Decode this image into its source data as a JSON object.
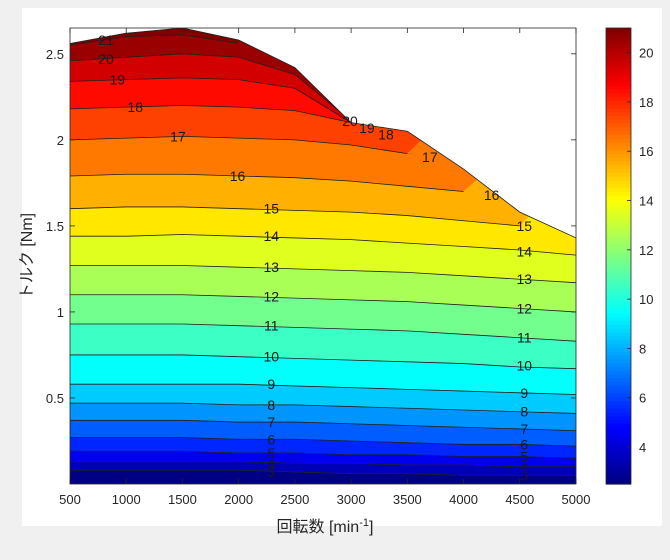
{
  "chart_data": {
    "type": "contour",
    "title": "",
    "xlabel": "回転数 [min",
    "xlabel_sup": "-1",
    "xlabel_tail": "]",
    "ylabel": "トルク [Nm]",
    "xlim": [
      500,
      5000
    ],
    "ylim": [
      0,
      2.65
    ],
    "x_ticks": [
      500,
      1000,
      1500,
      2000,
      2500,
      3000,
      3500,
      4000,
      4500,
      5000
    ],
    "y_ticks": [
      0.5,
      1,
      1.5,
      2,
      2.5
    ],
    "colorbar_ticks": [
      4,
      6,
      8,
      10,
      12,
      14,
      16,
      18,
      20
    ],
    "colorbar_range": [
      2.5,
      21
    ],
    "colormap": "jet",
    "boundary_torque_max": {
      "x": [
        500,
        1000,
        1500,
        2000,
        2500,
        3000,
        3500,
        4000,
        4500,
        5000
      ],
      "y": [
        2.56,
        2.62,
        2.65,
        2.58,
        2.42,
        2.1,
        2.05,
        1.83,
        1.58,
        1.43
      ]
    },
    "levels": [
      3,
      4,
      5,
      6,
      7,
      8,
      9,
      10,
      11,
      12,
      13,
      14,
      15,
      16,
      17,
      18,
      19,
      20,
      21
    ],
    "contour_torque_at_x": {
      "x": [
        500,
        1000,
        1500,
        2000,
        2500,
        3000,
        3500,
        4000,
        4500,
        5000
      ],
      "levels": {
        "3": [
          0.08,
          0.08,
          0.08,
          0.08,
          0.07,
          0.06,
          0.06,
          0.05,
          0.05,
          0.05
        ],
        "4": [
          0.13,
          0.13,
          0.13,
          0.13,
          0.12,
          0.12,
          0.11,
          0.11,
          0.1,
          0.1
        ],
        "5": [
          0.19,
          0.19,
          0.19,
          0.18,
          0.18,
          0.17,
          0.17,
          0.16,
          0.16,
          0.15
        ],
        "6": [
          0.27,
          0.27,
          0.27,
          0.26,
          0.26,
          0.25,
          0.24,
          0.23,
          0.23,
          0.22
        ],
        "7": [
          0.37,
          0.37,
          0.37,
          0.36,
          0.36,
          0.35,
          0.34,
          0.33,
          0.32,
          0.31
        ],
        "8": [
          0.47,
          0.47,
          0.47,
          0.46,
          0.46,
          0.45,
          0.44,
          0.43,
          0.42,
          0.41
        ],
        "9": [
          0.58,
          0.58,
          0.58,
          0.58,
          0.57,
          0.56,
          0.55,
          0.54,
          0.53,
          0.52
        ],
        "10": [
          0.75,
          0.75,
          0.75,
          0.74,
          0.73,
          0.72,
          0.71,
          0.7,
          0.68,
          0.67
        ],
        "11": [
          0.93,
          0.93,
          0.93,
          0.92,
          0.91,
          0.9,
          0.89,
          0.87,
          0.85,
          0.83
        ],
        "12": [
          1.1,
          1.1,
          1.1,
          1.09,
          1.08,
          1.07,
          1.06,
          1.04,
          1.02,
          1.0
        ],
        "13": [
          1.27,
          1.27,
          1.27,
          1.26,
          1.25,
          1.24,
          1.23,
          1.21,
          1.19,
          1.17
        ],
        "14": [
          1.44,
          1.44,
          1.45,
          1.44,
          1.43,
          1.42,
          1.4,
          1.38,
          1.36,
          1.33
        ],
        "15": [
          1.6,
          1.61,
          1.61,
          1.6,
          1.59,
          1.58,
          1.56,
          1.53,
          1.5,
          null
        ],
        "16": [
          1.79,
          1.8,
          1.8,
          1.79,
          1.78,
          1.76,
          1.73,
          1.7,
          null,
          null
        ],
        "17": [
          2.0,
          2.01,
          2.02,
          2.01,
          2.0,
          1.97,
          1.92,
          null,
          null,
          null
        ],
        "18": [
          2.18,
          2.19,
          2.2,
          2.19,
          2.17,
          2.1,
          2.06,
          null,
          null,
          null
        ],
        "19": [
          2.34,
          2.35,
          2.36,
          2.35,
          2.3,
          2.1,
          null,
          null,
          null,
          null
        ],
        "20": [
          2.46,
          2.48,
          2.5,
          2.48,
          2.38,
          2.11,
          null,
          null,
          null,
          null
        ],
        "21": [
          2.55,
          2.6,
          2.61,
          2.56,
          null,
          null,
          null,
          null,
          null,
          null
        ]
      }
    },
    "contour_labels": [
      {
        "level": 21,
        "x": 820,
        "y": 2.58
      },
      {
        "level": 20,
        "x": 820,
        "y": 2.47
      },
      {
        "level": 19,
        "x": 920,
        "y": 2.35
      },
      {
        "level": 18,
        "x": 1080,
        "y": 2.19
      },
      {
        "level": 17,
        "x": 1460,
        "y": 2.02
      },
      {
        "level": 16,
        "x": 1990,
        "y": 1.79
      },
      {
        "level": 15,
        "x": 2290,
        "y": 1.6
      },
      {
        "level": 14,
        "x": 2290,
        "y": 1.44
      },
      {
        "level": 13,
        "x": 2290,
        "y": 1.26
      },
      {
        "level": 12,
        "x": 2290,
        "y": 1.09
      },
      {
        "level": 11,
        "x": 2290,
        "y": 0.92
      },
      {
        "level": 10,
        "x": 2290,
        "y": 0.74
      },
      {
        "level": 9,
        "x": 2290,
        "y": 0.58
      },
      {
        "level": 8,
        "x": 2290,
        "y": 0.46
      },
      {
        "level": 7,
        "x": 2290,
        "y": 0.36
      },
      {
        "level": 6,
        "x": 2290,
        "y": 0.26
      },
      {
        "level": 5,
        "x": 2290,
        "y": 0.18
      },
      {
        "level": 4,
        "x": 2290,
        "y": 0.12
      },
      {
        "level": 3,
        "x": 2290,
        "y": 0.07
      },
      {
        "level": 20,
        "x": 2990,
        "y": 2.11
      },
      {
        "level": 19,
        "x": 3140,
        "y": 2.07
      },
      {
        "level": 18,
        "x": 3310,
        "y": 2.03
      },
      {
        "level": 17,
        "x": 3700,
        "y": 1.9
      },
      {
        "level": 16,
        "x": 4250,
        "y": 1.68
      },
      {
        "level": 15,
        "x": 4540,
        "y": 1.5
      },
      {
        "level": 14,
        "x": 4540,
        "y": 1.35
      },
      {
        "level": 13,
        "x": 4540,
        "y": 1.19
      },
      {
        "level": 12,
        "x": 4540,
        "y": 1.02
      },
      {
        "level": 11,
        "x": 4540,
        "y": 0.85
      },
      {
        "level": 10,
        "x": 4540,
        "y": 0.69
      },
      {
        "level": 9,
        "x": 4540,
        "y": 0.53
      },
      {
        "level": 8,
        "x": 4540,
        "y": 0.42
      },
      {
        "level": 7,
        "x": 4540,
        "y": 0.32
      },
      {
        "level": 6,
        "x": 4540,
        "y": 0.23
      },
      {
        "level": 5,
        "x": 4540,
        "y": 0.16
      },
      {
        "level": 4,
        "x": 4540,
        "y": 0.1
      },
      {
        "level": 3,
        "x": 4540,
        "y": 0.05
      }
    ]
  }
}
